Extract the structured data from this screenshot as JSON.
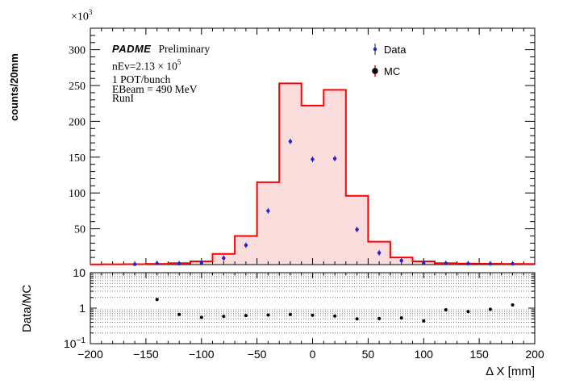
{
  "annotations": {
    "experiment": "PADME",
    "preliminary": "Preliminary",
    "nev_main": "nEv=2.13 × 10",
    "nev_sup": "5",
    "line1": "1 POT/bunch",
    "line2": "EBeam = 490 MeV",
    "line3": "RunI"
  },
  "legend": {
    "data_label": "Data",
    "mc_label": "MC",
    "data_marker": "blue-dot-with-error-bar",
    "mc_marker": "black-dot-with-red-line"
  },
  "axes": {
    "x_title": "Δ X [mm]",
    "y_main_title": "counts/20mm",
    "y_main_scale_main": "×10",
    "y_main_scale_sup": "3",
    "y_ratio_title": "Data/MC"
  },
  "colors": {
    "mc_line": "#ff0000",
    "mc_fill": "#fbdcdc",
    "data_marker": "#2222cc",
    "ratio_marker": "#000000",
    "axis": "#000000",
    "grid_dotted": "#777777"
  },
  "chart_data": [
    {
      "type": "bar",
      "role": "main-panel",
      "ylabel": "counts/20mm",
      "y_scale_label": "×10³",
      "xlim": [
        -200,
        200
      ],
      "ylim": [
        0,
        330
      ],
      "bin_width": 20,
      "categories": [
        -200,
        -180,
        -160,
        -140,
        -120,
        -100,
        -80,
        -60,
        -40,
        -20,
        0,
        20,
        40,
        60,
        80,
        100,
        120,
        140,
        160,
        180,
        200
      ],
      "series": [
        {
          "name": "MC",
          "style": "filled-step-histogram",
          "values": [
            0.3,
            0.4,
            0.6,
            1.0,
            2.0,
            4.5,
            15,
            40,
            115,
            253,
            222,
            244,
            96,
            32,
            10,
            4.5,
            2.0,
            1.5,
            1.2,
            1.0,
            0.8
          ]
        },
        {
          "name": "Data",
          "style": "points",
          "values": [
            null,
            null,
            0.5,
            1.7,
            1.3,
            2.5,
            9,
            27,
            75,
            172,
            147,
            148,
            49,
            16.5,
            5.5,
            2.0,
            1.8,
            1.3,
            1.1,
            1.2,
            null
          ]
        }
      ],
      "x_major_ticks": [
        -200,
        -150,
        -100,
        -50,
        0,
        50,
        100,
        150,
        200
      ],
      "x_minor_step": 10,
      "y_major_ticks": [
        0,
        50,
        100,
        150,
        200,
        250,
        300
      ],
      "y_labeled_ticks": [
        50,
        100,
        150,
        200,
        250,
        300
      ],
      "y_minor_step": 10,
      "legend_position": "top-right",
      "grid": false
    },
    {
      "type": "scatter",
      "role": "ratio-panel",
      "ylabel": "Data/MC",
      "xlabel": "Δ X [mm]",
      "yscale": "log",
      "ylim": [
        0.1,
        10
      ],
      "xlim": [
        -200,
        200
      ],
      "x": [
        -140,
        -120,
        -100,
        -80,
        -60,
        -40,
        -20,
        0,
        20,
        40,
        60,
        80,
        100,
        120,
        140,
        160,
        180
      ],
      "y": [
        1.75,
        0.67,
        0.55,
        0.59,
        0.62,
        0.64,
        0.67,
        0.63,
        0.6,
        0.5,
        0.51,
        0.53,
        0.44,
        0.9,
        0.8,
        0.93,
        1.23
      ],
      "y_tick_labels": [
        {
          "value": 10,
          "text": "10"
        },
        {
          "value": 1,
          "text": "1"
        },
        {
          "value": 0.1,
          "text": "10",
          "sup": "−1"
        }
      ],
      "x_major_ticks": [
        -200,
        -150,
        -100,
        -50,
        0,
        50,
        100,
        150,
        200
      ],
      "x_minor_step": 10,
      "grid": "dotted-horizontal-log-minor"
    }
  ]
}
